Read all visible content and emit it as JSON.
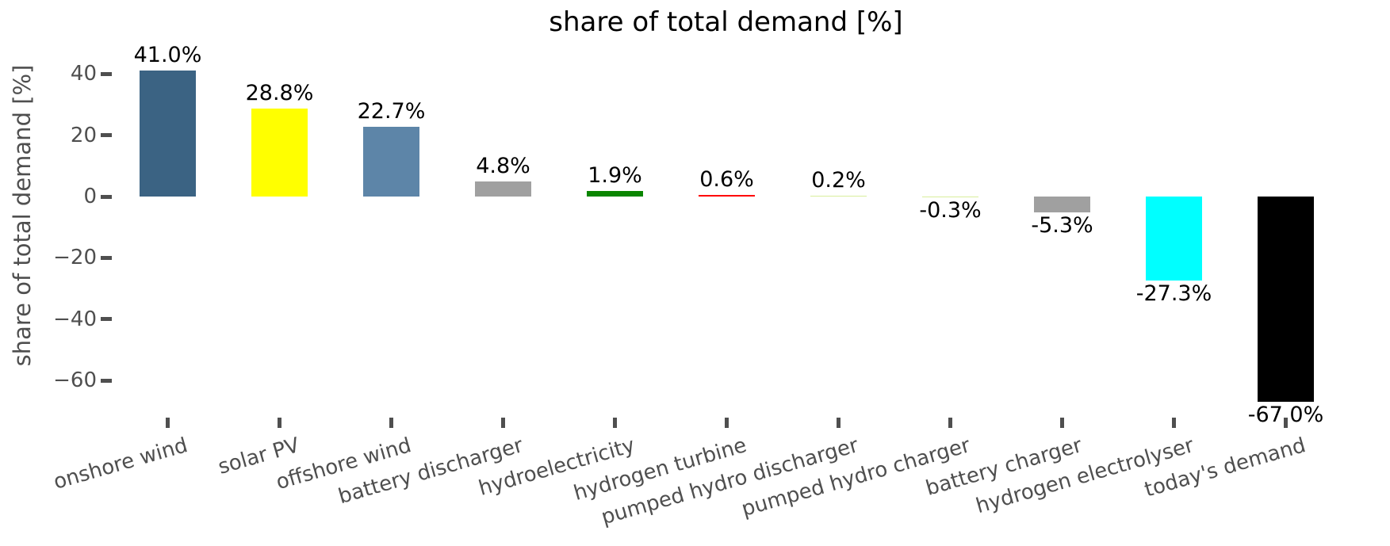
{
  "figure": {
    "title": "share of total demand [%]",
    "ylabel": "share of total demand [%]"
  },
  "chart_data": {
    "type": "bar",
    "title": "share of total demand [%]",
    "xlabel": "",
    "ylabel": "share of total demand [%]",
    "categories": [
      "onshore wind",
      "solar PV",
      "offshore wind",
      "battery discharger",
      "hydroelectricity",
      "hydrogen turbine",
      "pumped hydro discharger",
      "pumped hydro charger",
      "battery charger",
      "hydrogen electrolyser",
      "today's demand"
    ],
    "values": [
      41.0,
      28.8,
      22.7,
      4.8,
      1.9,
      0.6,
      0.2,
      -0.3,
      -5.3,
      -27.3,
      -67.0
    ],
    "value_labels": [
      "41.0%",
      "28.8%",
      "22.7%",
      "4.8%",
      "1.9%",
      "0.6%",
      "0.2%",
      "-0.3%",
      "-5.3%",
      "-27.3%",
      "-67.0%"
    ],
    "bar_colors": [
      "#3B6383",
      "#FFFF00",
      "#5D85A8",
      "#A0A0A0",
      "#0A8500",
      "#FF0000",
      "#D8EE9C",
      "#D8EE9C",
      "#A0A0A0",
      "#00FFFF",
      "#000000"
    ],
    "yticks": [
      40,
      20,
      0,
      -20,
      -40,
      -60
    ],
    "ytick_labels": [
      "40",
      "20",
      "0",
      "−20",
      "−40",
      "−60"
    ],
    "ylim": [
      -71.6,
      49.1
    ],
    "grid": false,
    "legend": null,
    "background_color": "#FFFFFF",
    "axis_text_color": "#4f4f4f",
    "value_label_color": "#000000",
    "x_label_rotation_deg": 16
  }
}
